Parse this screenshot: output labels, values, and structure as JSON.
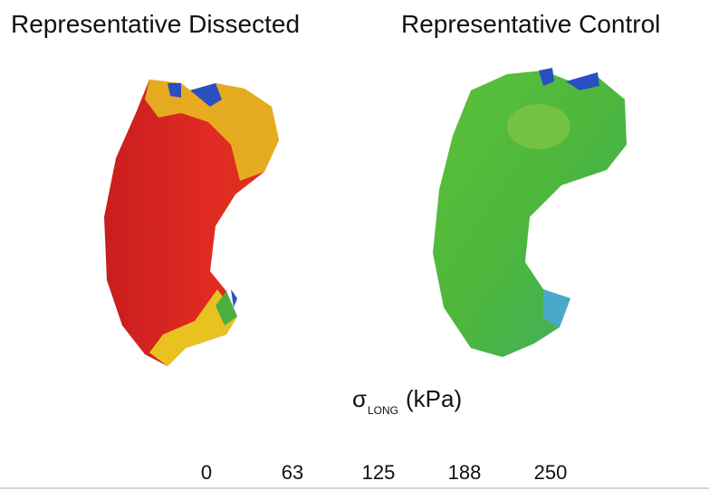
{
  "panels": [
    {
      "title": "Representative Dissected"
    },
    {
      "title": "Representative Control"
    }
  ],
  "colorbar": {
    "symbol": "σ",
    "subscript": "LONG",
    "unit": "(kPa)",
    "ticks": [
      0,
      63,
      125,
      188,
      250
    ]
  }
}
